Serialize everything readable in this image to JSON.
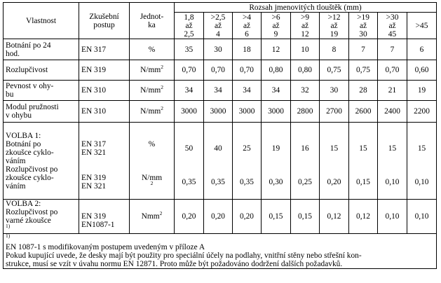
{
  "header": {
    "property": "Vlastnost",
    "method": [
      "Zkušební",
      "postup"
    ],
    "unit": [
      "Jednot-",
      "ka"
    ],
    "range_title": "Rozsah jmenovitých tlouštěk (mm)",
    "bands": [
      [
        "1,8",
        "až",
        "2,5"
      ],
      [
        ">2,5",
        "až",
        "4"
      ],
      [
        ">4",
        "až",
        "6"
      ],
      [
        ">6",
        "až",
        "9"
      ],
      [
        ">9",
        "až",
        "12"
      ],
      [
        ">12",
        "až",
        "19"
      ],
      [
        ">19",
        "až",
        "30"
      ],
      [
        ">30",
        "až",
        "45"
      ],
      [
        ">45"
      ]
    ]
  },
  "rows": [
    {
      "property": [
        "Botnání po 24",
        "hod."
      ],
      "method": "EN 317",
      "unit": "%",
      "values": [
        "35",
        "30",
        "18",
        "12",
        "10",
        "8",
        "7",
        "7",
        "6"
      ]
    },
    {
      "property": [
        "Rozlupčivost"
      ],
      "method": "EN 319",
      "unit_base": "N/mm",
      "unit_sup": "2",
      "values": [
        "0,70",
        "0,70",
        "0,70",
        "0,80",
        "0,80",
        "0,75",
        "0,75",
        "0,70",
        "0,60"
      ]
    },
    {
      "property": [
        "Pevnost v ohy-",
        "bu"
      ],
      "method": "EN 310",
      "unit_base": "N/mm",
      "unit_sup": "2",
      "values": [
        "34",
        "34",
        "34",
        "34",
        "32",
        "30",
        "28",
        "21",
        "19"
      ]
    },
    {
      "property": [
        "Modul pružnosti",
        "v ohybu"
      ],
      "method": "EN 310",
      "unit_base": "N/mm",
      "unit_sup": "2",
      "values": [
        "3000",
        "3000",
        "3000",
        "3000",
        "2800",
        "2700",
        "2600",
        "2400",
        "2200"
      ]
    }
  ],
  "option1": {
    "title": "VOLBA 1:",
    "sub1": {
      "property": [
        "Botnání po",
        "zkoušce cyklo-",
        "váním"
      ],
      "method": [
        "EN 317",
        "EN 321"
      ],
      "unit": "%",
      "values": [
        "50",
        "40",
        "25",
        "19",
        "16",
        "15",
        "15",
        "15",
        "15"
      ]
    },
    "sub2": {
      "property": [
        "Rozlupčivost po",
        "zkoušce cyklo-",
        "váním"
      ],
      "method": [
        "EN 319",
        "EN 321"
      ],
      "unit_base": "N/mm",
      "unit_sup": "2",
      "values": [
        "0,35",
        "0,35",
        "0,35",
        "0,30",
        "0,25",
        "0,20",
        "0,15",
        "0,10",
        "0,10"
      ]
    }
  },
  "option2": {
    "title": "VOLBA 2:",
    "property_lines": [
      "Rozlupčivost po",
      "varné zkoušce"
    ],
    "property_sup": "1)",
    "method": [
      "EN 319",
      "EN1087-1"
    ],
    "unit_base": "Nmm",
    "unit_sup": "2",
    "values": [
      "0,20",
      "0,20",
      "0,20",
      "0,15",
      "0,15",
      "0,12",
      "0,12",
      "0,10",
      "0,10"
    ]
  },
  "footnotes": {
    "note_sup": "1)",
    "note": " EN 1087-1 s modifikovaným postupem uvedeným v příloze A",
    "text": [
      "Pokud kupující uvede, že desky mají být použity pro speciální účely na podlahy, vnitřní stěny nebo střešní kon-",
      "strukce, musí se vzít v úvahu  normu EN 12871. Proto může být požadováno dodržení dalších požadavků."
    ]
  }
}
